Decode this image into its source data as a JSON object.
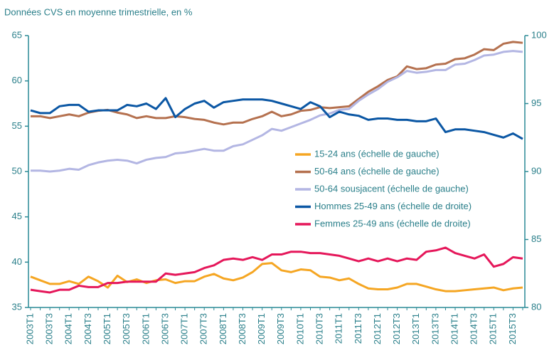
{
  "chart_data": {
    "type": "line",
    "subtitle": "Données CVS en moyenne trimestrielle, en %",
    "categories": [
      "2003T1",
      null,
      "2003T3",
      null,
      "2004T1",
      null,
      "2004T3",
      null,
      "2005T1",
      null,
      "2005T3",
      null,
      "2006T1",
      null,
      "2006T3",
      null,
      "2007T1",
      null,
      "2007T3",
      null,
      "2008T1",
      null,
      "2008T3",
      null,
      "2009T1",
      null,
      "2009T3",
      null,
      "2010T1",
      null,
      "2010T3",
      null,
      "2011T1",
      null,
      "2011T3",
      null,
      "2012T1",
      null,
      "2012T3",
      null,
      "2013T1",
      null,
      "2013T3",
      null,
      "2014T1",
      null,
      "2014T3",
      null,
      "2015T1",
      null,
      "2015T3",
      null
    ],
    "ylim": [
      35,
      65
    ],
    "yticks": [
      35,
      40,
      45,
      50,
      55,
      60,
      65
    ],
    "y2lim": [
      80,
      100
    ],
    "y2ticks": [
      80,
      85,
      90,
      95,
      100
    ],
    "axis_color": "#2a8a96",
    "series": [
      {
        "name": "15-24 ans (échelle de gauche)",
        "color": "#f5a623",
        "values": [
          38.4,
          38.0,
          37.6,
          37.6,
          37.9,
          37.6,
          38.4,
          37.9,
          37.2,
          38.5,
          37.8,
          38.1,
          37.7,
          38.0,
          38.1,
          37.7,
          37.9,
          37.9,
          38.4,
          38.7,
          38.2,
          38.0,
          38.3,
          38.9,
          39.8,
          39.9,
          39.1,
          38.9,
          39.2,
          39.1,
          38.4,
          38.3,
          38.0,
          38.2,
          37.6,
          37.1,
          37.0,
          37.0,
          37.2,
          37.6,
          37.6,
          37.3,
          37.0,
          36.8,
          36.8,
          36.9,
          37.0,
          37.1,
          37.2,
          36.9,
          37.1,
          37.2
        ]
      },
      {
        "name": "50-64 ans (échelle de gauche)",
        "color": "#b5714f",
        "values": [
          56.1,
          56.1,
          55.9,
          56.1,
          56.3,
          56.1,
          56.5,
          56.7,
          56.8,
          56.5,
          56.3,
          55.9,
          56.1,
          55.9,
          55.9,
          56.1,
          56.0,
          55.8,
          55.7,
          55.4,
          55.2,
          55.4,
          55.4,
          55.8,
          56.1,
          56.6,
          56.1,
          56.3,
          56.7,
          56.8,
          57.1,
          57.0,
          57.1,
          57.2,
          58.0,
          58.8,
          59.4,
          60.1,
          60.5,
          61.6,
          61.3,
          61.4,
          61.8,
          61.9,
          62.4,
          62.5,
          62.9,
          63.5,
          63.4,
          64.1,
          64.3,
          64.2
        ]
      },
      {
        "name": "50-64 sousjacent (échelle de gauche)",
        "color": "#b3b6e3",
        "values": [
          50.1,
          50.1,
          50.0,
          50.1,
          50.3,
          50.2,
          50.7,
          51.0,
          51.2,
          51.3,
          51.2,
          50.9,
          51.3,
          51.5,
          51.6,
          52.0,
          52.1,
          52.3,
          52.5,
          52.3,
          52.3,
          52.8,
          53.0,
          53.5,
          54.0,
          54.7,
          54.5,
          54.9,
          55.3,
          55.7,
          56.2,
          56.4,
          56.8,
          56.9,
          57.8,
          58.5,
          59.1,
          59.9,
          60.4,
          61.1,
          60.9,
          61.0,
          61.2,
          61.2,
          61.8,
          61.9,
          62.3,
          62.8,
          62.9,
          63.2,
          63.3,
          63.2
        ]
      },
      {
        "name": "Hommes 25-49 ans (échelle de droite)",
        "color": "#0b57a4",
        "axis": "y2",
        "values": [
          94.5,
          94.3,
          94.3,
          94.8,
          94.9,
          94.9,
          94.4,
          94.5,
          94.5,
          94.5,
          94.9,
          94.8,
          95.0,
          94.6,
          95.4,
          94.0,
          94.6,
          95.0,
          95.2,
          94.7,
          95.1,
          95.2,
          95.3,
          95.3,
          95.3,
          95.2,
          95.0,
          94.8,
          94.6,
          95.1,
          94.8,
          94.0,
          94.4,
          94.2,
          94.1,
          93.8,
          93.9,
          93.9,
          93.8,
          93.8,
          93.7,
          93.7,
          93.9,
          92.9,
          93.1,
          93.1,
          93.0,
          92.9,
          92.7,
          92.5,
          92.8,
          92.4
        ]
      },
      {
        "name": "Femmes 25-49 ans (échelle de droite)",
        "color": "#e5175a",
        "axis": "y2",
        "values": [
          81.3,
          81.2,
          81.1,
          81.3,
          81.3,
          81.6,
          81.5,
          81.5,
          81.8,
          81.8,
          81.9,
          81.9,
          81.9,
          81.9,
          82.5,
          82.4,
          82.5,
          82.6,
          82.9,
          83.1,
          83.5,
          83.6,
          83.5,
          83.7,
          83.5,
          83.9,
          83.9,
          84.1,
          84.1,
          84.0,
          84.0,
          83.9,
          83.8,
          83.6,
          83.4,
          83.6,
          83.4,
          83.6,
          83.4,
          83.6,
          83.5,
          84.1,
          84.2,
          84.4,
          84.0,
          83.8,
          83.6,
          83.9,
          83.0,
          83.2,
          83.7,
          83.6
        ]
      }
    ]
  }
}
